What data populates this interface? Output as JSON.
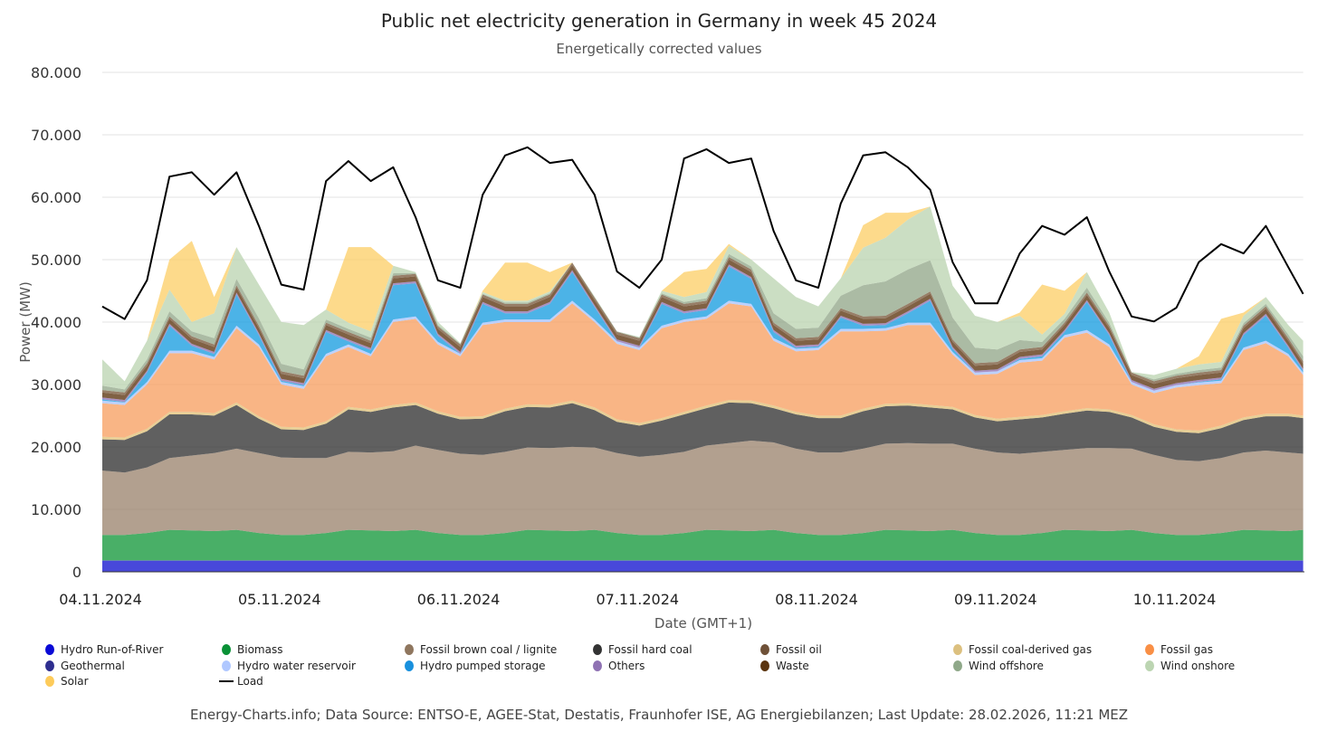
{
  "chart_data": {
    "type": "area",
    "stacked": true,
    "title": "Public net electricity generation in Germany in week 45 2024",
    "subtitle": "Energetically corrected values",
    "xlabel": "Date (GMT+1)",
    "ylabel": "Power (MW)",
    "ylim": [
      0,
      80000
    ],
    "xlim_hours": [
      0,
      161
    ],
    "yticks": [
      {
        "value": 0,
        "label": "0"
      },
      {
        "value": 10000,
        "label": "10.000"
      },
      {
        "value": 20000,
        "label": "20.000"
      },
      {
        "value": 30000,
        "label": "30.000"
      },
      {
        "value": 40000,
        "label": "40.000"
      },
      {
        "value": 50000,
        "label": "50.000"
      },
      {
        "value": 60000,
        "label": "60.000"
      },
      {
        "value": 70000,
        "label": "70.000"
      },
      {
        "value": 80000,
        "label": "80.000"
      }
    ],
    "xticks": [
      {
        "hour": 0,
        "label": "04.11.2024"
      },
      {
        "hour": 24,
        "label": "05.11.2024"
      },
      {
        "hour": 48,
        "label": "06.11.2024"
      },
      {
        "hour": 72,
        "label": "07.11.2024"
      },
      {
        "hour": 96,
        "label": "08.11.2024"
      },
      {
        "hour": 120,
        "label": "09.11.2024"
      },
      {
        "hour": 144,
        "label": "10.11.2024"
      }
    ],
    "grid": true,
    "legend_position": "bottom",
    "hours": [
      0,
      3,
      6,
      9,
      12,
      15,
      18,
      21,
      24,
      27,
      30,
      33,
      36,
      39,
      42,
      45,
      48,
      51,
      54,
      57,
      60,
      63,
      66,
      69,
      72,
      75,
      78,
      81,
      84,
      87,
      90,
      93,
      96,
      99,
      102,
      105,
      108,
      111,
      114,
      117,
      120,
      123,
      126,
      129,
      132,
      135,
      138,
      141,
      144,
      147,
      150,
      153,
      156,
      159,
      161
    ],
    "series": [
      {
        "name": "Hydro Run-of-River",
        "color": "#1515d0",
        "values": [
          1800,
          1800,
          1800,
          1800,
          1800,
          1800,
          1800,
          1800,
          1800,
          1800,
          1800,
          1800,
          1800,
          1800,
          1800,
          1800,
          1800,
          1800,
          1800,
          1800,
          1800,
          1800,
          1800,
          1800,
          1800,
          1800,
          1800,
          1800,
          1800,
          1800,
          1800,
          1800,
          1800,
          1800,
          1800,
          1800,
          1800,
          1800,
          1800,
          1800,
          1800,
          1800,
          1800,
          1800,
          1800,
          1800,
          1800,
          1800,
          1800,
          1800,
          1800,
          1800,
          1800,
          1800,
          1800
        ]
      },
      {
        "name": "Geothermal",
        "color": "#2e2e8f",
        "values": [
          20,
          20,
          20,
          20,
          20,
          20,
          20,
          20,
          20,
          20,
          20,
          20,
          20,
          20,
          20,
          20,
          20,
          20,
          20,
          20,
          20,
          20,
          20,
          20,
          20,
          20,
          20,
          20,
          20,
          20,
          20,
          20,
          20,
          20,
          20,
          20,
          20,
          20,
          20,
          20,
          20,
          20,
          20,
          20,
          20,
          20,
          20,
          20,
          20,
          20,
          20,
          20,
          20,
          20,
          20
        ]
      },
      {
        "name": "Biomass",
        "color": "#16983c",
        "values": [
          4100,
          4100,
          4400,
          4900,
          4800,
          4700,
          4900,
          4400,
          4100,
          4100,
          4400,
          4900,
          4800,
          4700,
          4900,
          4400,
          4100,
          4100,
          4400,
          4900,
          4800,
          4700,
          4900,
          4400,
          4100,
          4100,
          4400,
          4900,
          4800,
          4700,
          4900,
          4400,
          4100,
          4100,
          4400,
          4900,
          4800,
          4700,
          4900,
          4400,
          4100,
          4100,
          4400,
          4900,
          4800,
          4700,
          4900,
          4400,
          4100,
          4100,
          4400,
          4900,
          4800,
          4700,
          4900
        ]
      },
      {
        "name": "Fossil brown coal / lignite",
        "color": "#9c8570",
        "values": [
          10300,
          10000,
          10500,
          11500,
          12000,
          12500,
          13000,
          12800,
          12400,
          12300,
          12000,
          12500,
          12500,
          12800,
          13500,
          13300,
          13000,
          12800,
          13000,
          13200,
          13200,
          13500,
          13200,
          12800,
          12500,
          12800,
          13000,
          13500,
          14000,
          14500,
          14000,
          13500,
          13200,
          13200,
          13500,
          13800,
          14000,
          14000,
          13800,
          13500,
          13200,
          13000,
          13000,
          12800,
          13200,
          13300,
          13000,
          12500,
          12000,
          11800,
          12000,
          12400,
          12800,
          12600,
          12200
        ]
      },
      {
        "name": "Fossil hard coal",
        "color": "#333333",
        "values": [
          5000,
          5200,
          5800,
          7000,
          6600,
          6000,
          7000,
          5500,
          4500,
          4500,
          5500,
          6800,
          6500,
          7000,
          6500,
          5800,
          5500,
          5800,
          6500,
          6500,
          6500,
          7000,
          6000,
          5000,
          5000,
          5500,
          6000,
          6000,
          6500,
          6000,
          5500,
          5500,
          5500,
          5500,
          6000,
          6000,
          6000,
          5800,
          5500,
          5000,
          5000,
          5500,
          5500,
          5800,
          6000,
          5800,
          5000,
          4500,
          4500,
          4500,
          4800,
          5200,
          5500,
          5800,
          5700
        ]
      },
      {
        "name": "Fossil coal-derived gas",
        "color": "#e0c278",
        "values": [
          400,
          400,
          400,
          400,
          400,
          400,
          400,
          400,
          400,
          400,
          400,
          400,
          400,
          400,
          400,
          400,
          400,
          400,
          400,
          400,
          400,
          400,
          400,
          400,
          400,
          400,
          400,
          400,
          400,
          400,
          400,
          400,
          400,
          400,
          400,
          400,
          400,
          400,
          400,
          400,
          400,
          400,
          400,
          400,
          400,
          400,
          400,
          400,
          400,
          400,
          400,
          400,
          400,
          400,
          400
        ]
      },
      {
        "name": "Fossil gas",
        "color": "#f7a063",
        "values": [
          5400,
          5200,
          7100,
          9400,
          9400,
          8600,
          11900,
          11100,
          6800,
          6200,
          10400,
          9600,
          8500,
          13300,
          13400,
          10700,
          9700,
          14600,
          13900,
          13200,
          13300,
          15600,
          13700,
          12100,
          11700,
          14400,
          14400,
          13900,
          15500,
          15100,
          10400,
          9700,
          10500,
          13500,
          12400,
          11700,
          12500,
          12800,
          8400,
          6400,
          7200,
          8700,
          8700,
          11800,
          12100,
          10000,
          4900,
          5000,
          6700,
          7300,
          6800,
          10800,
          11300,
          9200,
          6500
        ]
      },
      {
        "name": "Hydro water reservoir",
        "color": "#a9c4ff",
        "values": [
          400,
          400,
          400,
          400,
          400,
          400,
          400,
          400,
          400,
          400,
          400,
          400,
          400,
          400,
          400,
          400,
          400,
          400,
          400,
          400,
          400,
          400,
          400,
          400,
          400,
          400,
          400,
          400,
          400,
          400,
          400,
          400,
          400,
          400,
          400,
          400,
          400,
          400,
          400,
          400,
          400,
          400,
          400,
          400,
          400,
          400,
          400,
          400,
          400,
          400,
          400,
          400,
          400,
          400,
          400
        ]
      },
      {
        "name": "Hydro pumped storage",
        "color": "#1a9ee0",
        "values": [
          200,
          100,
          1500,
          4000,
          800,
          500,
          5000,
          1500,
          200,
          200,
          3500,
          500,
          600,
          5500,
          5300,
          1000,
          0,
          3000,
          1000,
          1000,
          2500,
          4600,
          2000,
          0,
          0,
          3500,
          1000,
          1000,
          5500,
          4000,
          1000,
          200,
          200,
          1800,
          500,
          500,
          1500,
          3500,
          500,
          0,
          0,
          200,
          300,
          500,
          4500,
          1500,
          0,
          0,
          0,
          100,
          200,
          2000,
          4000,
          1000,
          300
        ]
      },
      {
        "name": "Others",
        "color": "#8f72b3",
        "values": [
          300,
          300,
          300,
          300,
          300,
          300,
          300,
          300,
          300,
          300,
          300,
          300,
          300,
          300,
          300,
          300,
          300,
          300,
          300,
          300,
          300,
          300,
          300,
          300,
          300,
          300,
          300,
          300,
          300,
          300,
          300,
          300,
          300,
          300,
          300,
          300,
          300,
          300,
          300,
          300,
          300,
          300,
          300,
          300,
          300,
          300,
          300,
          300,
          300,
          300,
          300,
          300,
          300,
          300,
          300
        ]
      },
      {
        "name": "Waste",
        "color": "#5c3510",
        "values": [
          800,
          800,
          800,
          800,
          800,
          800,
          800,
          800,
          800,
          800,
          800,
          800,
          800,
          800,
          800,
          800,
          800,
          800,
          800,
          800,
          800,
          800,
          800,
          800,
          800,
          800,
          800,
          800,
          800,
          800,
          800,
          800,
          800,
          800,
          800,
          800,
          800,
          800,
          800,
          800,
          800,
          800,
          800,
          800,
          800,
          800,
          800,
          800,
          800,
          800,
          800,
          800,
          800,
          800,
          800
        ]
      },
      {
        "name": "Fossil oil",
        "color": "#7a5a3c",
        "values": [
          400,
          400,
          400,
          400,
          400,
          400,
          400,
          400,
          400,
          400,
          400,
          400,
          400,
          400,
          400,
          400,
          400,
          400,
          400,
          400,
          400,
          400,
          400,
          400,
          400,
          400,
          400,
          400,
          400,
          400,
          400,
          400,
          400,
          400,
          400,
          400,
          400,
          400,
          400,
          400,
          400,
          400,
          400,
          400,
          400,
          400,
          400,
          400,
          400,
          400,
          400,
          400,
          400,
          400,
          400
        ]
      },
      {
        "name": "Wind offshore",
        "color": "#93a88b",
        "values": [
          700,
          500,
          600,
          800,
          800,
          1000,
          1000,
          1200,
          1200,
          1000,
          500,
          500,
          500,
          400,
          100,
          200,
          100,
          100,
          200,
          200,
          200,
          0,
          100,
          100,
          100,
          200,
          300,
          400,
          500,
          500,
          1500,
          1500,
          1500,
          2000,
          5000,
          5500,
          5500,
          5000,
          3500,
          2500,
          2000,
          1500,
          800,
          600,
          800,
          500,
          0,
          300,
          300,
          400,
          400,
          400,
          400,
          600,
          800
        ]
      },
      {
        "name": "Wind onshore",
        "color": "#bcd5b2",
        "values": [
          4200,
          1300,
          3000,
          3500,
          1500,
          4000,
          5100,
          5400,
          6700,
          7100,
          1600,
          1000,
          1000,
          1200,
          200,
          500,
          100,
          300,
          300,
          300,
          300,
          0,
          100,
          0,
          100,
          400,
          800,
          1000,
          1300,
          1100,
          5600,
          5100,
          3400,
          2800,
          6000,
          7000,
          8000,
          8600,
          5100,
          5100,
          4400,
          3900,
          1200,
          800,
          2500,
          1600,
          100,
          700,
          800,
          900,
          900,
          1200,
          1100,
          1500,
          2500
        ]
      },
      {
        "name": "Solar",
        "color": "#fdcf6a",
        "values": [
          0,
          0,
          0,
          4800,
          13000,
          2600,
          0,
          0,
          0,
          0,
          0,
          12100,
          13500,
          0,
          0,
          0,
          0,
          200,
          6100,
          6100,
          3100,
          0,
          0,
          0,
          0,
          0,
          4000,
          3700,
          300,
          0,
          0,
          0,
          0,
          0,
          3600,
          4000,
          1100,
          0,
          0,
          0,
          0,
          500,
          8000,
          3700,
          0,
          0,
          0,
          0,
          0,
          1300,
          6900,
          500,
          0,
          0,
          0
        ]
      }
    ],
    "load": {
      "name": "Load",
      "color": "#000000",
      "values": [
        42500,
        40500,
        46700,
        63300,
        64000,
        60400,
        64000,
        55400,
        46000,
        45200,
        62600,
        65800,
        62600,
        64800,
        56800,
        46700,
        45500,
        60400,
        66700,
        68000,
        65500,
        66000,
        60400,
        48100,
        45500,
        50000,
        66200,
        67700,
        65500,
        66200,
        54600,
        46700,
        45500,
        59000,
        66700,
        67200,
        64800,
        61200,
        49600,
        43000,
        43000,
        51000,
        55400,
        54000,
        56800,
        48100,
        40900,
        40100,
        42300,
        49600,
        52500,
        51000,
        55400,
        48800,
        44500
      ]
    },
    "legend": [
      {
        "name": "Hydro Run-of-River",
        "color": "#0a0ad6"
      },
      {
        "name": "Biomass",
        "color": "#0a9136"
      },
      {
        "name": "Fossil brown coal / lignite",
        "color": "#8f765e"
      },
      {
        "name": "Fossil hard coal",
        "color": "#333333"
      },
      {
        "name": "Fossil oil",
        "color": "#6f5138"
      },
      {
        "name": "Fossil coal-derived gas",
        "color": "#dcc07f"
      },
      {
        "name": "Fossil gas",
        "color": "#f98f45"
      },
      {
        "name": "Geothermal",
        "color": "#2e2e8f"
      },
      {
        "name": "Hydro water reservoir",
        "color": "#b0c8ff"
      },
      {
        "name": "Hydro pumped storage",
        "color": "#1890dd"
      },
      {
        "name": "Others",
        "color": "#8f72b3"
      },
      {
        "name": "Waste",
        "color": "#5c3510"
      },
      {
        "name": "Wind offshore",
        "color": "#8fa889"
      },
      {
        "name": "Wind onshore",
        "color": "#bcd5b2"
      },
      {
        "name": "Solar",
        "color": "#fdcb5a"
      },
      {
        "name": "Load",
        "color": "#000000",
        "line": true
      }
    ],
    "credits": "Energy-Charts.info; Data Source: ENTSO-E, AGEE-Stat, Destatis, Fraunhofer ISE, AG Energiebilanzen; Last Update: 28.02.2026, 11:21 MEZ"
  }
}
